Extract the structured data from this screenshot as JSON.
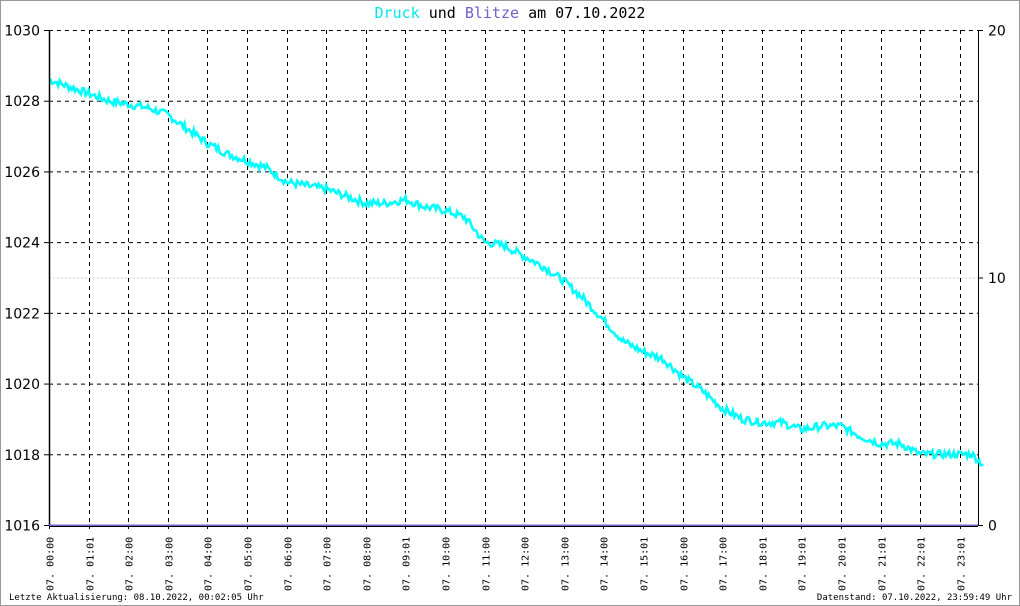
{
  "chart_data": {
    "type": "line",
    "title": {
      "part1": "Druck",
      "part2": "und",
      "part3": "Blitze",
      "part4": "am 07.10.2022"
    },
    "colors": {
      "druck": "#00ffff",
      "blitze": "#7060d0",
      "axis": "#000000",
      "grid": "#000000"
    },
    "y_left": {
      "min": 1016,
      "max": 1030,
      "ticks": [
        "1016",
        "1018",
        "1020",
        "1022",
        "1024",
        "1026",
        "1028",
        "1030"
      ]
    },
    "y_right": {
      "min": 0,
      "max": 20,
      "ticks": [
        "0",
        "10",
        "20"
      ]
    },
    "xlim_hours": [
      0,
      23.46
    ],
    "x_tick_labels": [
      "07. 00:00",
      "07. 01:01",
      "07. 02:00",
      "07. 03:00",
      "07. 04:00",
      "07. 05:00",
      "07. 06:00",
      "07. 07:00",
      "07. 08:00",
      "07. 09:01",
      "07. 10:00",
      "07. 11:00",
      "07. 12:00",
      "07. 13:00",
      "07. 14:00",
      "07. 15:01",
      "07. 16:00",
      "07. 17:00",
      "07. 18:01",
      "07. 19:01",
      "07. 20:01",
      "07. 21:01",
      "07. 22:01",
      "07. 23:01"
    ],
    "series": [
      {
        "name": "Druck",
        "x_hours": [
          0,
          0.5,
          1,
          1.5,
          2,
          2.5,
          3,
          3.5,
          4,
          4.5,
          5,
          5.5,
          6,
          6.5,
          7,
          7.5,
          8,
          8.5,
          9,
          9.5,
          10,
          10.5,
          11,
          11.5,
          12,
          12.5,
          13,
          13.5,
          14,
          14.5,
          15,
          15.5,
          16,
          16.5,
          17,
          17.5,
          18,
          18.5,
          19,
          19.5,
          20,
          20.5,
          21,
          21.5,
          22,
          22.5,
          23,
          23.3,
          23.6
        ],
        "values": [
          1028.6,
          1028.4,
          1028.2,
          1028.0,
          1027.9,
          1027.8,
          1027.6,
          1027.2,
          1026.8,
          1026.5,
          1026.3,
          1026.1,
          1025.7,
          1025.6,
          1025.5,
          1025.3,
          1025.1,
          1025.1,
          1025.2,
          1025.0,
          1024.9,
          1024.7,
          1024.0,
          1023.9,
          1023.6,
          1023.3,
          1022.9,
          1022.4,
          1021.8,
          1021.2,
          1020.9,
          1020.7,
          1020.2,
          1019.8,
          1019.3,
          1019.0,
          1018.9,
          1018.9,
          1018.7,
          1018.8,
          1018.8,
          1018.5,
          1018.3,
          1018.3,
          1018.0,
          1018.0,
          1018.0,
          1018.0,
          1017.7
        ]
      },
      {
        "name": "Blitze",
        "x_hours": [],
        "values": []
      }
    ]
  },
  "footer": {
    "left": "Letzte Aktualisierung: 08.10.2022, 00:02:05 Uhr",
    "right": "Datenstand: 07.10.2022, 23:59:49 Uhr"
  }
}
